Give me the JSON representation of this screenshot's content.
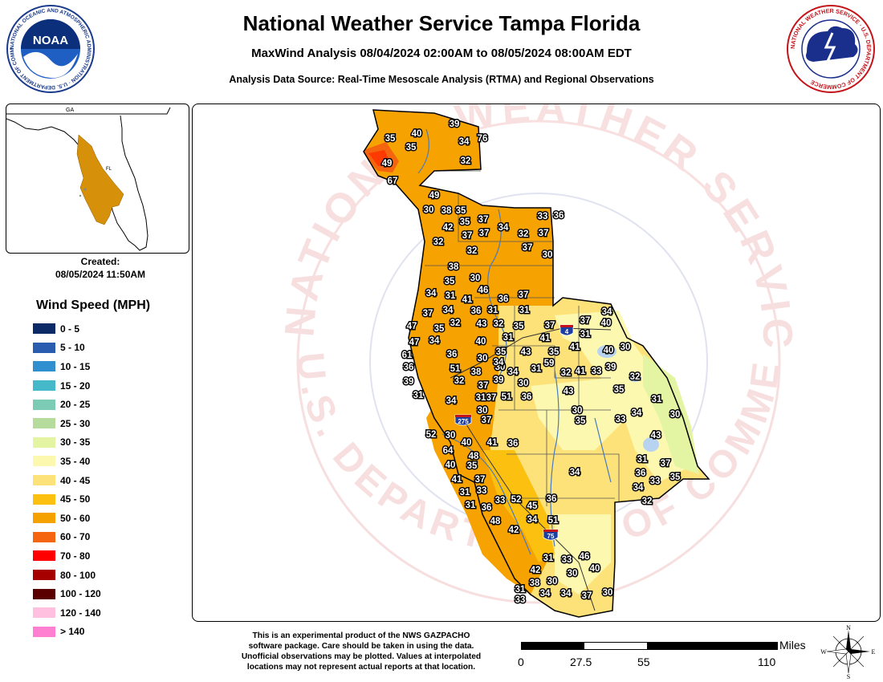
{
  "header": {
    "title": "National Weather Service Tampa Florida",
    "subtitle": "MaxWind Analysis 08/04/2024 02:00AM to 08/05/2024 08:00AM EDT",
    "source": "Analysis Data Source: Real-Time Mesoscale Analysis (RTMA) and Regional Observations"
  },
  "logos": {
    "noaa_text": "NOAA",
    "noaa_ring": "NATIONAL OCEANIC AND ATMOSPHERIC ADMINISTRATION · U.S. DEPARTMENT OF COMMERCE",
    "nws_ring": "NATIONAL WEATHER SERVICE · U.S. DEPARTMENT OF COMMERCE"
  },
  "inset": {
    "state_label_ga": "GA",
    "state_label_fl": "FL"
  },
  "created": {
    "label": "Created:",
    "timestamp": "08/05/2024 11:50AM"
  },
  "legend": {
    "title": "Wind Speed (MPH)",
    "items": [
      {
        "label": "0 - 5",
        "color": "#0b2a66"
      },
      {
        "label": "5 - 10",
        "color": "#2a5db0"
      },
      {
        "label": "10 - 15",
        "color": "#2f8fcf"
      },
      {
        "label": "15 - 20",
        "color": "#45b8c9"
      },
      {
        "label": "20 - 25",
        "color": "#7ccbb5"
      },
      {
        "label": "25 - 30",
        "color": "#b5dc9d"
      },
      {
        "label": "30 - 35",
        "color": "#e3f5a2"
      },
      {
        "label": "35 - 40",
        "color": "#fdf8b0"
      },
      {
        "label": "40 - 45",
        "color": "#fde279"
      },
      {
        "label": "45 - 50",
        "color": "#fcc010"
      },
      {
        "label": "50 - 60",
        "color": "#f5a200"
      },
      {
        "label": "60 - 70",
        "color": "#f5650f"
      },
      {
        "label": "70 - 80",
        "color": "#ff0000"
      },
      {
        "label": "80 - 100",
        "color": "#a70000"
      },
      {
        "label": "100 - 120",
        "color": "#5a0000"
      },
      {
        "label": "120 - 140",
        "color": "#ffc0e0"
      },
      {
        "label": "> 140",
        "color": "#ff80d0"
      }
    ]
  },
  "watermark": {
    "text_top": "NATIONAL WEATHER SERVICE",
    "text_bottom": "U.S. DEPARTMENT OF COMMERCE"
  },
  "highway_shields": {
    "i4": "4",
    "i275": "275",
    "i75": "75"
  },
  "map_values": [
    "39",
    "35",
    "34",
    "76",
    "40",
    "35",
    "32",
    "49",
    "67",
    "49",
    "30",
    "38",
    "35",
    "42",
    "35",
    "37",
    "32",
    "33",
    "36",
    "37",
    "37",
    "34",
    "37",
    "32",
    "37",
    "30",
    "38",
    "32",
    "35",
    "30",
    "46",
    "34",
    "31",
    "41",
    "36",
    "37",
    "37",
    "34",
    "36",
    "31",
    "31",
    "34",
    "40",
    "47",
    "35",
    "32",
    "43",
    "32",
    "35",
    "37",
    "37",
    "31",
    "47",
    "34",
    "40",
    "31",
    "41",
    "41",
    "61",
    "36",
    "30",
    "35",
    "43",
    "35",
    "40",
    "30",
    "36",
    "51",
    "38",
    "30",
    "34",
    "59",
    "32",
    "41",
    "33",
    "39",
    "39",
    "32",
    "37",
    "39",
    "34",
    "31",
    "30",
    "32",
    "35",
    "37",
    "31",
    "34",
    "31",
    "51",
    "36",
    "43",
    "31",
    "30",
    "30",
    "30",
    "37",
    "35",
    "33",
    "34",
    "52",
    "30",
    "40",
    "41",
    "36",
    "43",
    "64",
    "48",
    "31",
    "37",
    "40",
    "35",
    "34",
    "36",
    "35",
    "33",
    "41",
    "37",
    "34",
    "32",
    "31",
    "33",
    "33",
    "52",
    "36",
    "31",
    "36",
    "45",
    "51",
    "48",
    "34",
    "42",
    "31",
    "33",
    "46",
    "42",
    "30",
    "40",
    "30",
    "38",
    "31",
    "34",
    "37",
    "30",
    "33",
    "34"
  ],
  "disclaimer": [
    "This is an experimental product of the NWS GAZPACHO",
    "software package. Care should be taken in using the data.",
    "Unofficial observations may be plotted. Values at interpolated",
    "locations may not represent actual reports at that location."
  ],
  "scale": {
    "units": "Miles",
    "ticks": [
      "0",
      "27.5",
      "55",
      "110"
    ]
  },
  "compass": {
    "n": "N",
    "s": "S",
    "e": "E",
    "w": "W"
  }
}
